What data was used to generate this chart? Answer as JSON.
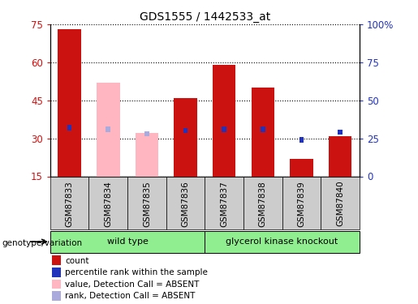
{
  "title": "GDS1555 / 1442533_at",
  "samples": [
    "GSM87833",
    "GSM87834",
    "GSM87835",
    "GSM87836",
    "GSM87837",
    "GSM87838",
    "GSM87839",
    "GSM87840"
  ],
  "ylim_left": [
    15,
    75
  ],
  "ylim_right": [
    0,
    100
  ],
  "yticks_left": [
    15,
    30,
    45,
    60,
    75
  ],
  "ytick_labels_left": [
    "15",
    "30",
    "45",
    "60",
    "75"
  ],
  "ytick_labels_right": [
    "0",
    "25",
    "50",
    "75",
    "100%"
  ],
  "bar_width": 0.6,
  "count_values": [
    73,
    0,
    0,
    46,
    59,
    50,
    22,
    31
  ],
  "count_absent_values": [
    0,
    52,
    32,
    0,
    0,
    0,
    0,
    0
  ],
  "rank_values": [
    32,
    0,
    0,
    30,
    31,
    31,
    24,
    29
  ],
  "rank_absent_values": [
    0,
    31,
    28,
    0,
    0,
    0,
    0,
    0
  ],
  "is_absent": [
    false,
    true,
    true,
    false,
    false,
    false,
    false,
    false
  ],
  "group_data": [
    {
      "label": "wild type",
      "start": 0,
      "end": 3
    },
    {
      "label": "glycerol kinase knockout",
      "start": 4,
      "end": 7
    }
  ],
  "light_green": "#90EE90",
  "bar_color_red": "#CC1111",
  "bar_color_pink": "#FFB6C1",
  "rank_color_blue": "#2233BB",
  "rank_color_lightblue": "#AAAADD",
  "axis_color_left": "#CC1111",
  "axis_color_right": "#2233BB",
  "legend_items": [
    {
      "label": "count",
      "color": "#CC1111"
    },
    {
      "label": "percentile rank within the sample",
      "color": "#2233BB"
    },
    {
      "label": "value, Detection Call = ABSENT",
      "color": "#FFB6C1"
    },
    {
      "label": "rank, Detection Call = ABSENT",
      "color": "#AAAADD"
    }
  ],
  "genotype_label": "genotype/variation",
  "sample_label_bg": "#CCCCCC",
  "rank_bar_width": 0.12,
  "rank_bar_height": 2.0
}
